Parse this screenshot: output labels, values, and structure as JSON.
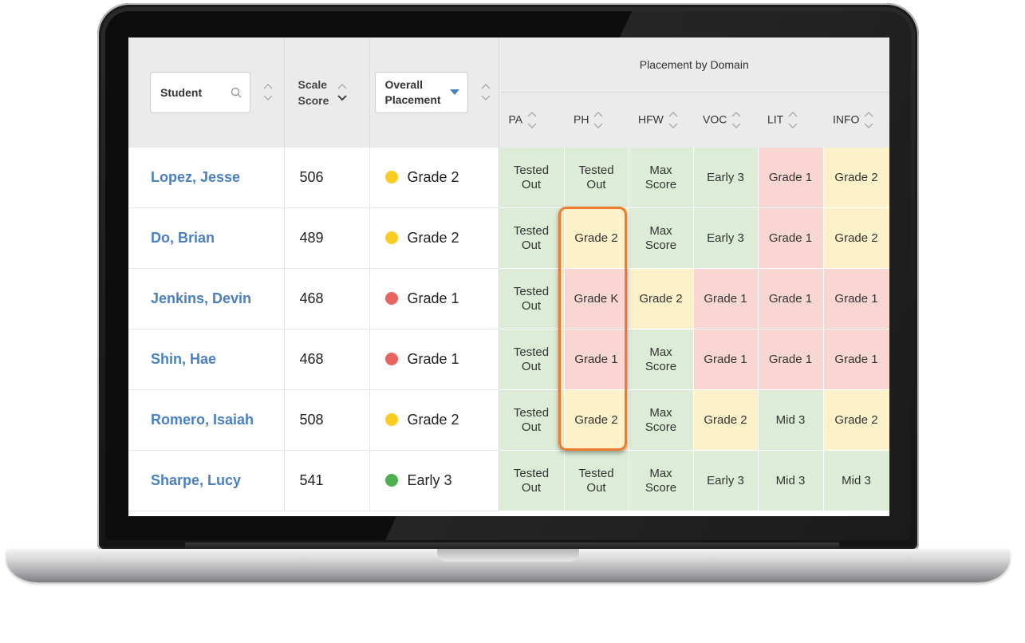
{
  "header": {
    "student_label": "Student",
    "scale_score_label_line1": "Scale",
    "scale_score_label_line2": "Score",
    "overall_placement_line1": "Overall",
    "overall_placement_line2": "Placement",
    "placement_by_domain": "Placement by Domain",
    "domains": [
      "PA",
      "PH",
      "HFW",
      "VOC",
      "LIT",
      "INFO"
    ]
  },
  "colors": {
    "green": "#dcecd6",
    "yellow": "#fdf1c9",
    "red": "#f9d6d2",
    "dot_yellow": "#f7cd21",
    "dot_red": "#e8645f",
    "dot_green": "#4caf50",
    "link": "#4a7fc1",
    "highlight": "#ee7b30"
  },
  "rows": [
    {
      "name": "Lopez, Jesse",
      "score": "506",
      "placement": "Grade 2",
      "dot": "yellow",
      "domains": [
        [
          "Tested\nOut",
          "green"
        ],
        [
          "Tested\nOut",
          "green"
        ],
        [
          "Max\nScore",
          "green"
        ],
        [
          "Early 3",
          "green"
        ],
        [
          "Grade 1",
          "red"
        ],
        [
          "Grade 2",
          "yellow"
        ]
      ]
    },
    {
      "name": "Do, Brian",
      "score": "489",
      "placement": "Grade 2",
      "dot": "yellow",
      "domains": [
        [
          "Tested\nOut",
          "green"
        ],
        [
          "Grade 2",
          "yellow"
        ],
        [
          "Max\nScore",
          "green"
        ],
        [
          "Early 3",
          "green"
        ],
        [
          "Grade 1",
          "red"
        ],
        [
          "Grade 2",
          "yellow"
        ]
      ]
    },
    {
      "name": "Jenkins, Devin",
      "score": "468",
      "placement": "Grade 1",
      "dot": "red",
      "domains": [
        [
          "Tested\nOut",
          "green"
        ],
        [
          "Grade K",
          "red"
        ],
        [
          "Grade 2",
          "yellow"
        ],
        [
          "Grade 1",
          "red"
        ],
        [
          "Grade 1",
          "red"
        ],
        [
          "Grade 1",
          "red"
        ]
      ]
    },
    {
      "name": "Shin, Hae",
      "score": "468",
      "placement": "Grade 1",
      "dot": "red",
      "domains": [
        [
          "Tested\nOut",
          "green"
        ],
        [
          "Grade 1",
          "red"
        ],
        [
          "Max\nScore",
          "green"
        ],
        [
          "Grade 1",
          "red"
        ],
        [
          "Grade 1",
          "red"
        ],
        [
          "Grade 1",
          "red"
        ]
      ]
    },
    {
      "name": "Romero, Isaiah",
      "score": "508",
      "placement": "Grade 2",
      "dot": "yellow",
      "domains": [
        [
          "Tested\nOut",
          "green"
        ],
        [
          "Grade 2",
          "yellow"
        ],
        [
          "Max\nScore",
          "green"
        ],
        [
          "Grade 2",
          "yellow"
        ],
        [
          "Mid 3",
          "green"
        ],
        [
          "Grade 2",
          "yellow"
        ]
      ]
    },
    {
      "name": "Sharpe, Lucy",
      "score": "541",
      "placement": "Early 3",
      "dot": "green",
      "domains": [
        [
          "Tested\nOut",
          "green"
        ],
        [
          "Tested\nOut",
          "green"
        ],
        [
          "Max\nScore",
          "green"
        ],
        [
          "Early 3",
          "green"
        ],
        [
          "Mid 3",
          "green"
        ],
        [
          "Mid 3",
          "green"
        ]
      ]
    }
  ]
}
